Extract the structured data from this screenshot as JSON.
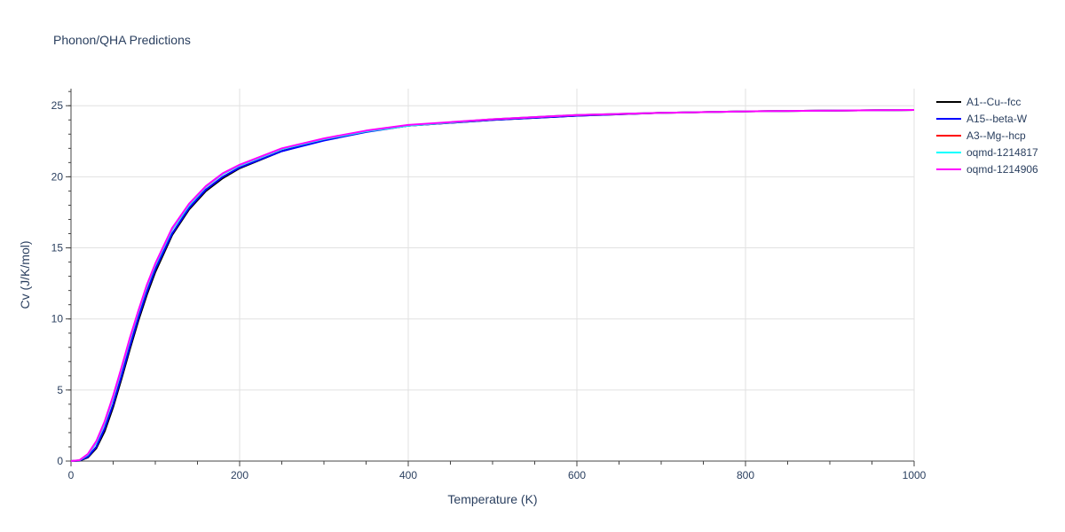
{
  "chart_data": {
    "type": "line",
    "title": "Phonon/QHA Predictions",
    "xlabel": "Temperature (K)",
    "ylabel": "Cv (J/K/mol)",
    "xlim": [
      0,
      1000
    ],
    "ylim": [
      0,
      26.2
    ],
    "xticks": [
      0,
      200,
      400,
      600,
      800,
      1000
    ],
    "yticks": [
      0,
      5,
      10,
      15,
      20,
      25
    ],
    "grid": true,
    "legend_position": "top-right",
    "x": [
      0,
      10,
      20,
      30,
      40,
      50,
      60,
      70,
      80,
      90,
      100,
      120,
      140,
      160,
      180,
      200,
      250,
      300,
      350,
      400,
      500,
      600,
      700,
      800,
      900,
      1000
    ],
    "series": [
      {
        "name": "A1--Cu--fcc",
        "color": "#000000",
        "values": [
          0,
          0.02,
          0.25,
          0.9,
          2.1,
          3.8,
          5.8,
          7.9,
          9.9,
          11.7,
          13.3,
          15.9,
          17.7,
          19.0,
          19.9,
          20.6,
          21.8,
          22.6,
          23.2,
          23.6,
          24.0,
          24.3,
          24.5,
          24.6,
          24.65,
          24.7
        ]
      },
      {
        "name": "A15--beta-W",
        "color": "#0000ff",
        "values": [
          0,
          0.03,
          0.3,
          1.0,
          2.3,
          4.0,
          6.0,
          8.1,
          10.1,
          11.9,
          13.5,
          16.0,
          17.8,
          19.1,
          20.0,
          20.65,
          21.8,
          22.55,
          23.15,
          23.6,
          24.0,
          24.3,
          24.5,
          24.6,
          24.65,
          24.7
        ]
      },
      {
        "name": "A3--Mg--hcp",
        "color": "#ff0000",
        "values": [
          0,
          0.05,
          0.45,
          1.3,
          2.7,
          4.5,
          6.5,
          8.6,
          10.5,
          12.3,
          13.8,
          16.3,
          18.0,
          19.3,
          20.2,
          20.8,
          21.95,
          22.65,
          23.2,
          23.6,
          24.05,
          24.35,
          24.5,
          24.6,
          24.65,
          24.7
        ]
      },
      {
        "name": "oqmd-1214817",
        "color": "#00ffff",
        "values": [
          0,
          0.05,
          0.45,
          1.3,
          2.7,
          4.5,
          6.5,
          8.6,
          10.5,
          12.3,
          13.8,
          16.3,
          18.0,
          19.3,
          20.2,
          20.8,
          21.95,
          22.65,
          23.2,
          23.6,
          24.05,
          24.35,
          24.5,
          24.6,
          24.65,
          24.7
        ]
      },
      {
        "name": "oqmd-1214906",
        "color": "#ff00ff",
        "values": [
          0,
          0.06,
          0.5,
          1.4,
          2.8,
          4.6,
          6.6,
          8.7,
          10.6,
          12.4,
          13.9,
          16.4,
          18.1,
          19.35,
          20.25,
          20.85,
          22.0,
          22.7,
          23.25,
          23.65,
          24.05,
          24.35,
          24.5,
          24.6,
          24.65,
          24.7
        ]
      }
    ]
  }
}
